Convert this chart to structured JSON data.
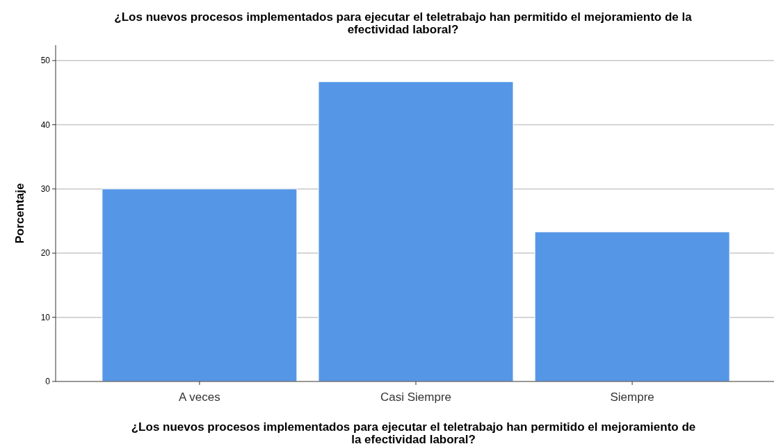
{
  "chart_data": {
    "type": "bar",
    "title": "¿Los nuevos procesos implementados para ejecutar el teletrabajo han permitido el mejoramiento de la efectividad laboral?",
    "xlabel": "¿Los nuevos procesos implementados para ejecutar el teletrabajo han permitido el mejoramiento de la efectividad laboral?",
    "ylabel": "Porcentaje",
    "categories": [
      "A veces",
      "Casi Siempre",
      "Siempre"
    ],
    "values": [
      30,
      46.7,
      23.3
    ],
    "color": "#5596e6",
    "ylim": [
      0,
      52.4
    ],
    "yticks": [
      0,
      10,
      20,
      30,
      40,
      50
    ],
    "grid": "y"
  }
}
